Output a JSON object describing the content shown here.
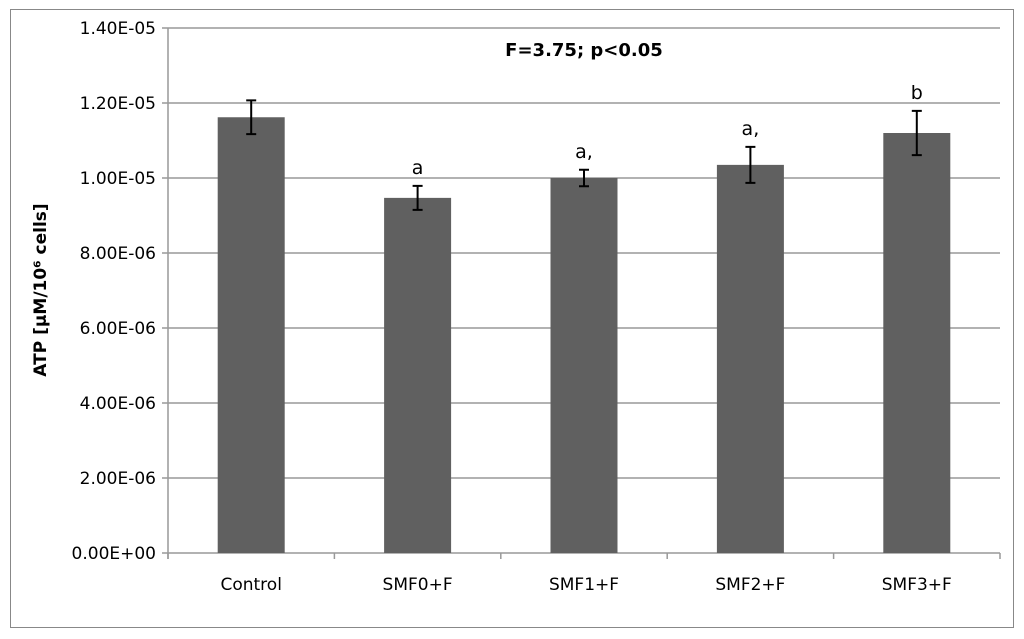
{
  "chart_data": {
    "type": "bar",
    "title": "F=3.75; p<0.05",
    "xlabel": "",
    "ylabel": "ATP [µM/10⁶ cells]",
    "ylim": [
      0,
      1.4e-05
    ],
    "yticks": [
      "0.00E+00",
      "2.00E-06",
      "4.00E-06",
      "6.00E-06",
      "8.00E-06",
      "1.00E-05",
      "1.20E-05",
      "1.40E-05"
    ],
    "ytick_values": [
      0,
      2e-06,
      4e-06,
      6e-06,
      8e-06,
      1e-05,
      1.2e-05,
      1.4e-05
    ],
    "grid": true,
    "categories": [
      "Control",
      "SMF0+F",
      "SMF1+F",
      "SMF2+F",
      "SMF3+F"
    ],
    "values": [
      1.162e-05,
      9.47e-06,
      1e-05,
      1.035e-05,
      1.12e-05
    ],
    "errors": [
      4.5e-07,
      3.2e-07,
      2.2e-07,
      4.8e-07,
      5.9e-07
    ],
    "annotations": [
      "",
      "a",
      "a,",
      "a,",
      "b"
    ],
    "bar_color": "#606060"
  }
}
